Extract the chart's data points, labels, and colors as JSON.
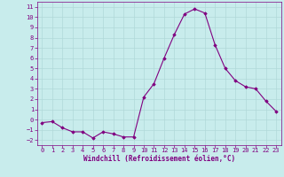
{
  "x": [
    0,
    1,
    2,
    3,
    4,
    5,
    6,
    7,
    8,
    9,
    10,
    11,
    12,
    13,
    14,
    15,
    16,
    17,
    18,
    19,
    20,
    21,
    22,
    23
  ],
  "y": [
    -0.3,
    -0.2,
    -0.8,
    -1.2,
    -1.2,
    -1.8,
    -1.2,
    -1.4,
    -1.7,
    -1.7,
    2.2,
    3.5,
    6.0,
    8.3,
    10.3,
    10.8,
    10.4,
    7.3,
    5.0,
    3.8,
    3.2,
    3.0,
    1.8,
    0.8
  ],
  "xlim": [
    -0.5,
    23.5
  ],
  "ylim": [
    -2.5,
    11.5
  ],
  "yticks": [
    -2,
    -1,
    0,
    1,
    2,
    3,
    4,
    5,
    6,
    7,
    8,
    9,
    10,
    11
  ],
  "xticks": [
    0,
    1,
    2,
    3,
    4,
    5,
    6,
    7,
    8,
    9,
    10,
    11,
    12,
    13,
    14,
    15,
    16,
    17,
    18,
    19,
    20,
    21,
    22,
    23
  ],
  "xlabel": "Windchill (Refroidissement éolien,°C)",
  "line_color": "#800080",
  "marker": "D",
  "marker_size": 1.8,
  "bg_color": "#c8ecec",
  "grid_color": "#b0d8d8",
  "tick_color": "#800080",
  "label_color": "#800080",
  "font_size_label": 5.5,
  "font_size_tick": 5.0
}
